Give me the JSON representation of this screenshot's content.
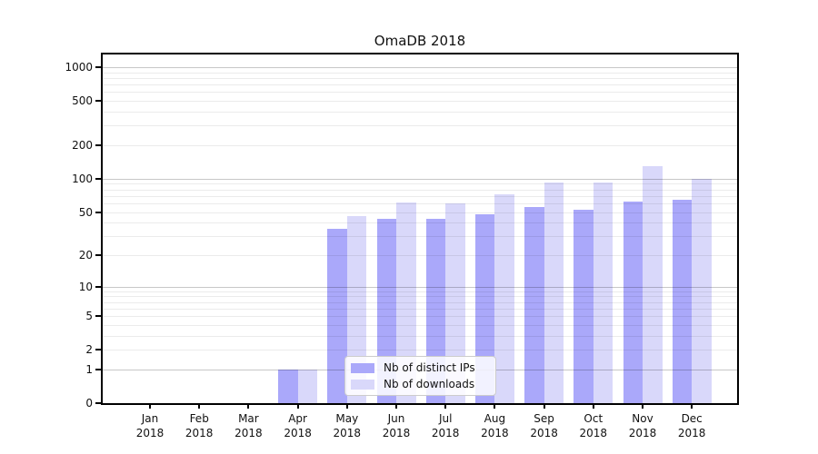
{
  "title": "OmaDB 2018",
  "chart_data": {
    "type": "bar",
    "title": "OmaDB 2018",
    "categories": [
      "Jan 2018",
      "Feb 2018",
      "Mar 2018",
      "Apr 2018",
      "May 2018",
      "Jun 2018",
      "Jul 2018",
      "Aug 2018",
      "Sep 2018",
      "Oct 2018",
      "Nov 2018",
      "Dec 2018"
    ],
    "series": [
      {
        "name": "Nb of distinct IPs",
        "color": "#aaa8fa",
        "values": [
          0,
          0,
          0,
          1,
          35,
          43,
          43,
          48,
          56,
          52,
          62,
          65
        ]
      },
      {
        "name": "Nb of downloads",
        "color": "#d9d8fa",
        "values": [
          0,
          0,
          0,
          1,
          46,
          61,
          60,
          72,
          92,
          93,
          130,
          100
        ]
      }
    ],
    "xlabel": "",
    "ylabel": "",
    "y_ticks": [
      0,
      1,
      2,
      5,
      10,
      20,
      50,
      100,
      200,
      500,
      1000
    ],
    "scale": "symlog-log1p",
    "ylim": [
      0,
      1300
    ],
    "grid": true,
    "legend_position": "lower center"
  },
  "colors": {
    "background": "#ffffff",
    "bar_ips": "#aaa8fa",
    "bar_downloads": "#d9d8fa",
    "grid_major": "rgba(0,0,0,0.22)",
    "grid_minor": "rgba(0,0,0,0.08)",
    "axis": "#000000",
    "text": "#111111",
    "legend_border": "#cccccc"
  }
}
